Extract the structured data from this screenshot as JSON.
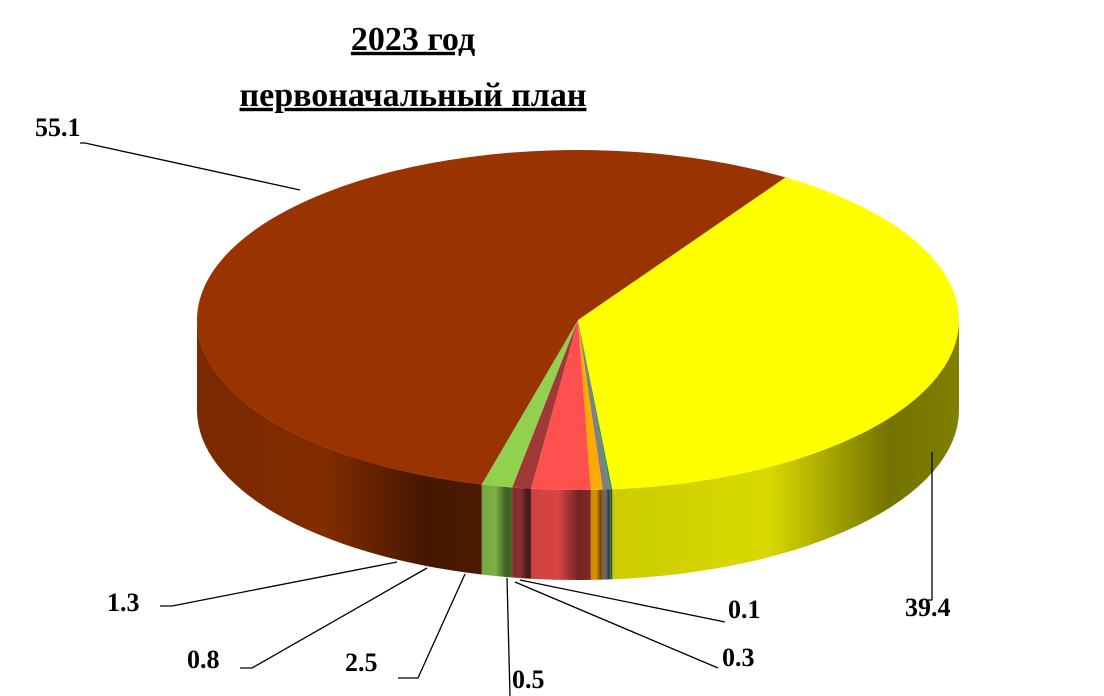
{
  "chart_data": {
    "type": "pie",
    "title": "2023 год",
    "subtitle": "первоначальный план",
    "values": [
      39.4,
      0.1,
      0.3,
      0.5,
      2.5,
      0.8,
      1.3,
      55.1
    ],
    "colors": [
      "#ffff00",
      "#339966",
      "#7f7f7f",
      "#ffaa00",
      "#ff5050",
      "#a03838",
      "#92d050",
      "#993300"
    ]
  }
}
